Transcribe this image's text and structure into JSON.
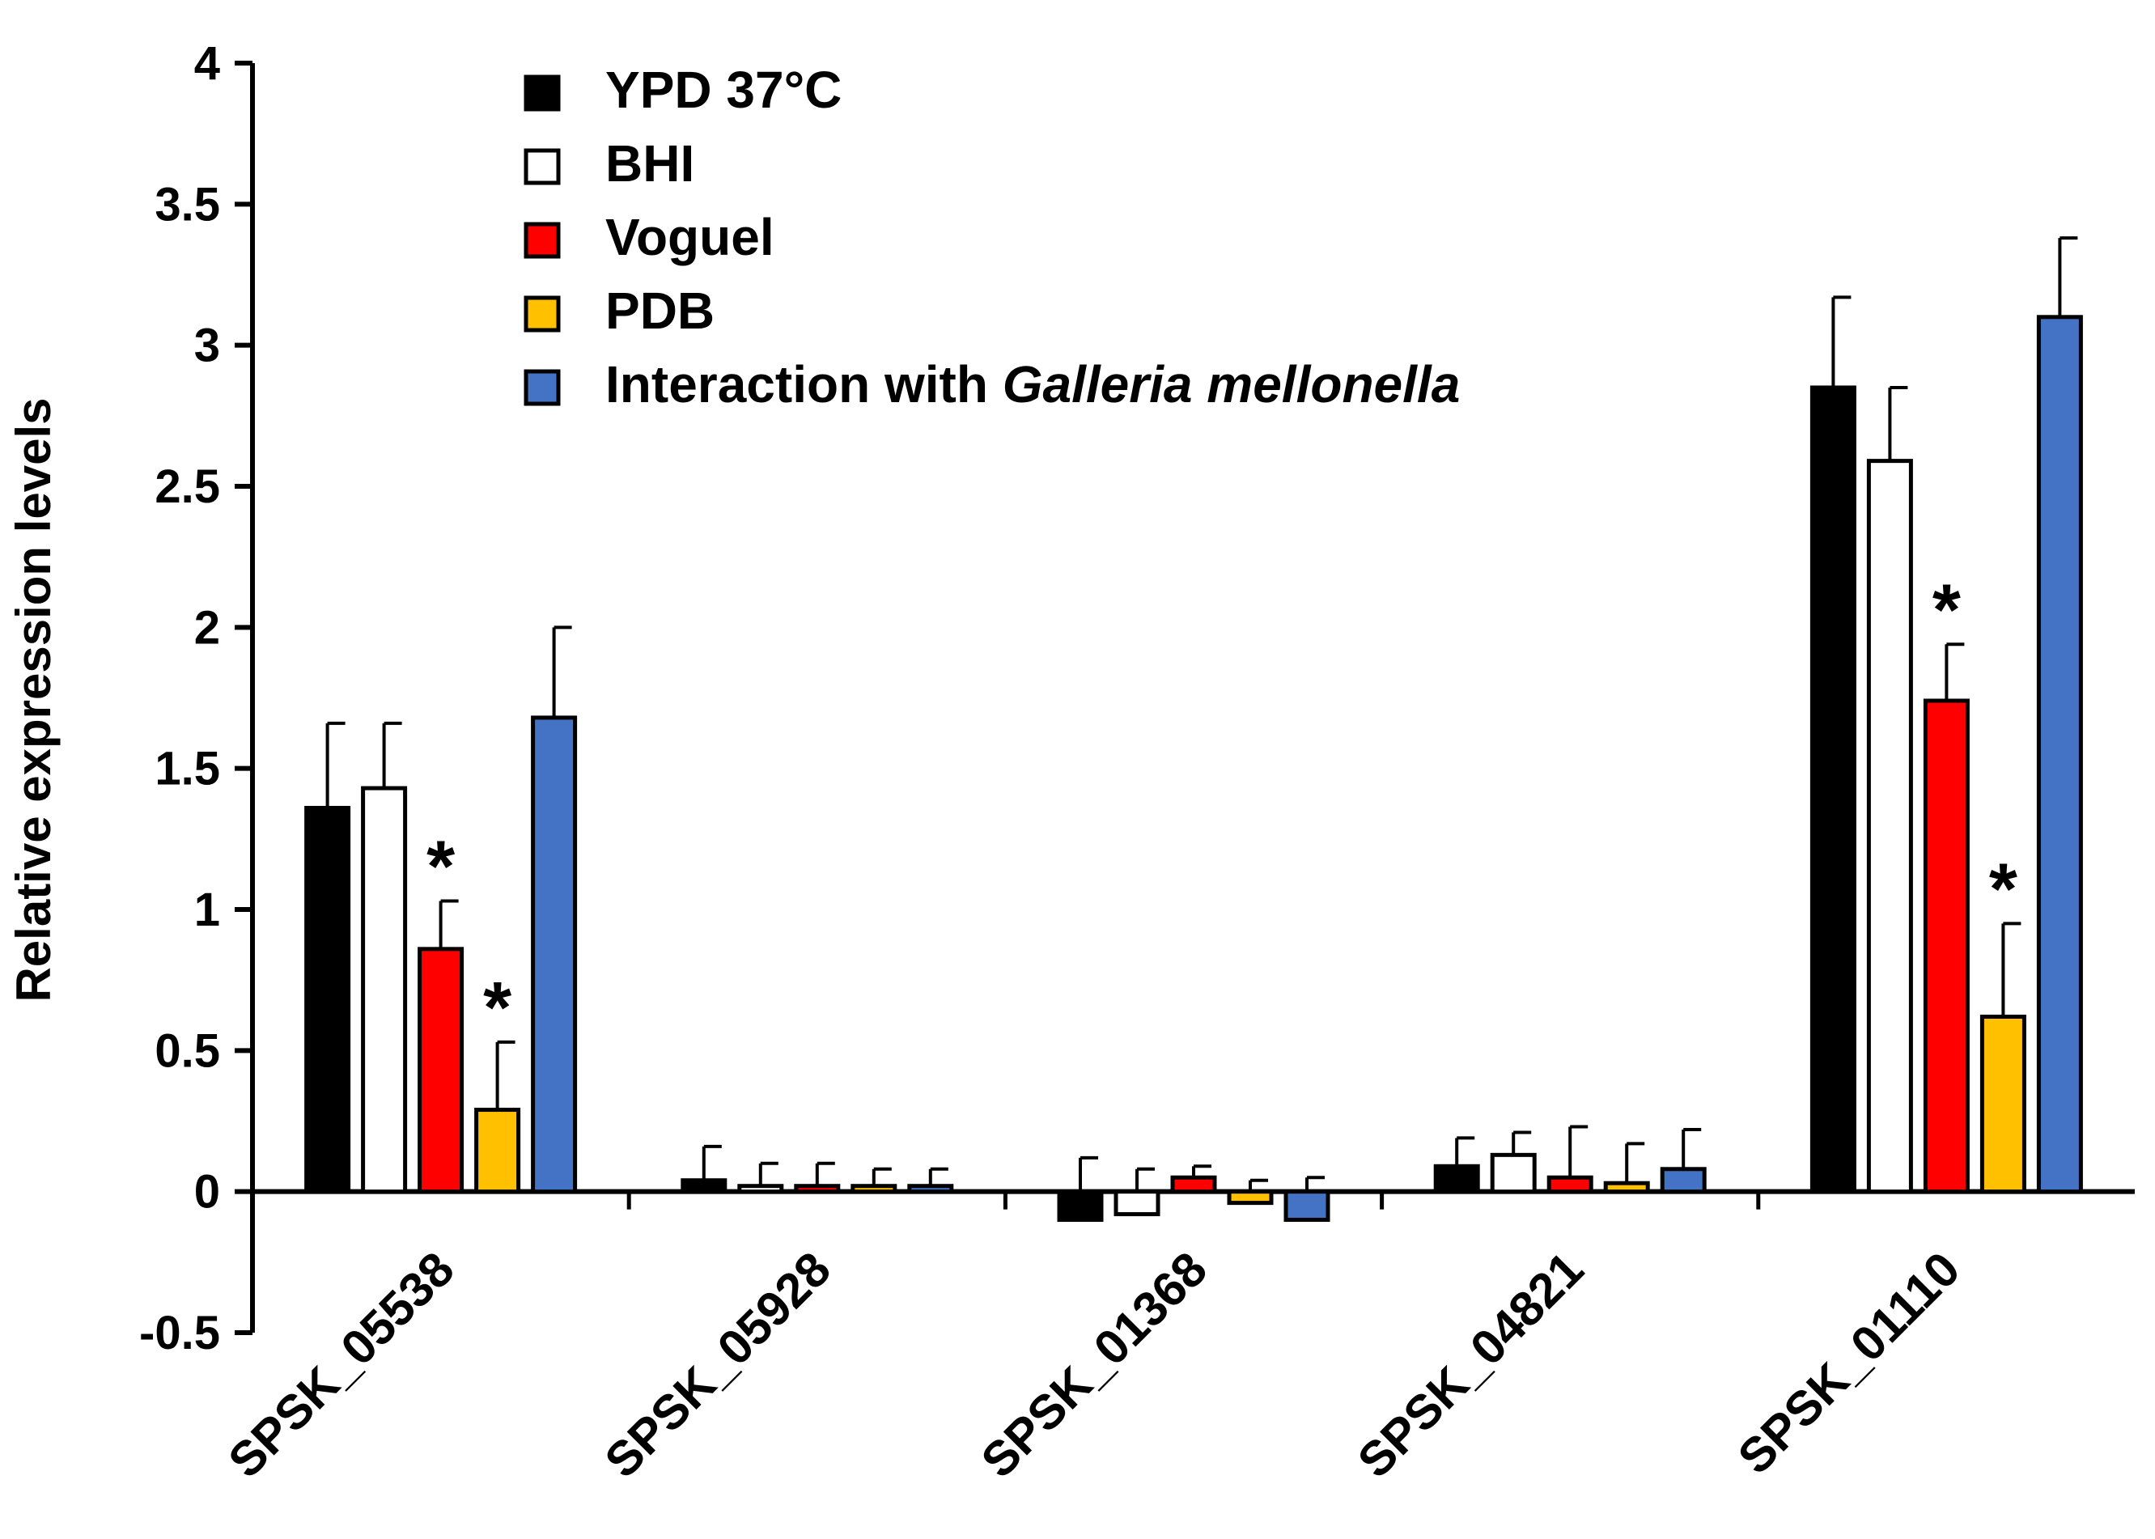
{
  "chart_data": {
    "type": "bar",
    "ylabel": "Relative expression levels",
    "ylim": [
      -0.5,
      4
    ],
    "yticks": [
      "4",
      "3.5",
      "3",
      "2.5",
      "2",
      "1.5",
      "1",
      "0.5",
      "0",
      "-0.5"
    ],
    "ytick_values": [
      4,
      3.5,
      3,
      2.5,
      2,
      1.5,
      1,
      0.5,
      0,
      -0.5
    ],
    "categories": [
      "SPSK_05538",
      "SPSK_05928",
      "SPSK_01368",
      "SPSK_04821",
      "SPSK_01110"
    ],
    "legend_position": "top-left",
    "series": [
      {
        "name": "YPD 37°C",
        "name_plain": "YPD 37°C",
        "color": "#000000",
        "values": [
          1.36,
          0.04,
          -0.1,
          0.09,
          2.85
        ],
        "errors": [
          0.3,
          0.12,
          0.12,
          0.1,
          0.32
        ],
        "stars": [
          false,
          false,
          false,
          false,
          false
        ]
      },
      {
        "name": "BHI",
        "name_plain": "BHI",
        "color": "#ffffff",
        "values": [
          1.43,
          0.02,
          -0.08,
          0.13,
          2.59
        ],
        "errors": [
          0.23,
          0.08,
          0.08,
          0.08,
          0.26
        ],
        "stars": [
          false,
          false,
          false,
          false,
          false
        ]
      },
      {
        "name": "Voguel",
        "name_plain": "Voguel",
        "color": "#ff0000",
        "values": [
          0.86,
          0.02,
          0.05,
          0.05,
          1.74
        ],
        "errors": [
          0.17,
          0.08,
          0.04,
          0.18,
          0.2
        ],
        "stars": [
          true,
          false,
          false,
          false,
          true
        ]
      },
      {
        "name": "PDB",
        "name_plain": "PDB",
        "color": "#ffc000",
        "values": [
          0.29,
          0.02,
          -0.04,
          0.03,
          0.62
        ],
        "errors": [
          0.24,
          0.06,
          0.04,
          0.14,
          0.33
        ],
        "stars": [
          true,
          false,
          false,
          false,
          true
        ]
      },
      {
        "name": "Interaction with Galleria mellonella",
        "name_plain": "Interaction with ",
        "name_italic": "Galleria mellonella",
        "color": "#4472c4",
        "values": [
          1.68,
          0.02,
          -0.1,
          0.08,
          3.1
        ],
        "errors": [
          0.32,
          0.06,
          0.05,
          0.14,
          0.28
        ],
        "stars": [
          false,
          false,
          false,
          false,
          false
        ]
      }
    ],
    "annotation": "*"
  }
}
